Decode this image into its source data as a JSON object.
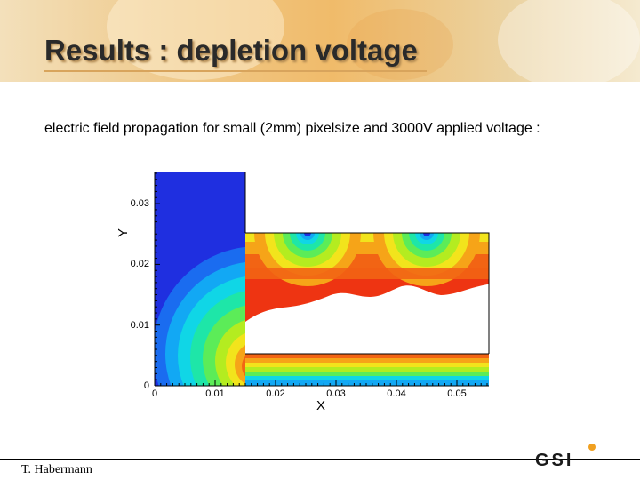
{
  "slide": {
    "title": "Results : depletion voltage",
    "subtitle": "electric field propagation for small (2mm) pixelsize and 3000V applied voltage :",
    "author": "T. Habermann",
    "logo_text": "GSI"
  },
  "plot": {
    "xlabel": "X",
    "ylabel": "Y",
    "x_ticks": [
      "0",
      "0.01",
      "0.02",
      "0.03",
      "0.04",
      "0.05"
    ],
    "y_ticks": [
      "0",
      "0.01",
      "0.02",
      "0.03"
    ],
    "colormap": [
      "#1f2fe0",
      "#1a6cf0",
      "#12a8f4",
      "#10d6e6",
      "#1ee6a8",
      "#5cec58",
      "#b4ec20",
      "#f2e41c",
      "#f6a418",
      "#f26414",
      "#ee3412"
    ]
  },
  "colors": {
    "title_text": "#2a2a2a",
    "header_orange": "#efc98a",
    "depleted_region": "#ffffff"
  }
}
